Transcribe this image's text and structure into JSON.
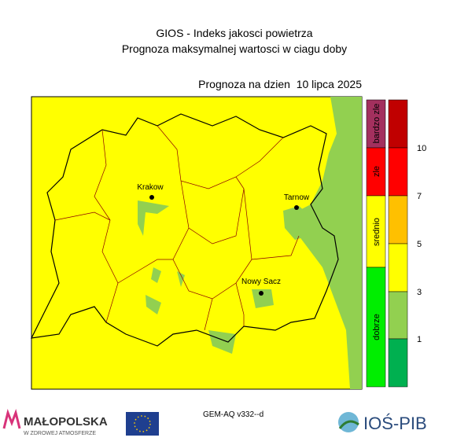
{
  "header": {
    "title": "GIOS - Indeks jakosci powietrza",
    "subtitle": "Prognoza maksymalnej wartosci w ciagu doby",
    "date_label": "Prognoza na dzien  10 lipca 2025"
  },
  "map": {
    "cities": [
      {
        "label": "Krakow"
      },
      {
        "label": "Tarnow"
      },
      {
        "label": "Nowy Sacz"
      }
    ]
  },
  "legend": {
    "categories": [
      "bardzo zle",
      "zle",
      "srednio",
      "dobrze"
    ],
    "scale_ticks": [
      10,
      7,
      5,
      3,
      1
    ]
  },
  "footer": {
    "model": "GEM-AQ v332--d",
    "logo_left": "MAŁOPOLSKA",
    "logo_left_sub": "W ZDROWEJ ATMOSFERZE",
    "logo_right": "IOŚ-PIB"
  }
}
